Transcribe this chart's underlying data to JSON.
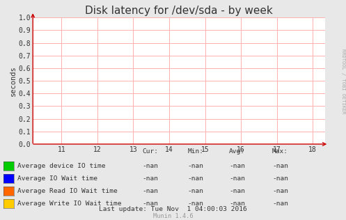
{
  "title": "Disk latency for /dev/sda - by week",
  "ylabel": "seconds",
  "xlim": [
    10.2,
    18.35
  ],
  "ylim": [
    0.0,
    1.0
  ],
  "xticks": [
    11,
    12,
    13,
    14,
    15,
    16,
    17,
    18
  ],
  "yticks": [
    0.0,
    0.1,
    0.2,
    0.3,
    0.4,
    0.5,
    0.6,
    0.7,
    0.8,
    0.9,
    1.0
  ],
  "grid_color": "#ffb0b0",
  "bg_color": "#e8e8e8",
  "plot_bg_color": "#ffffff",
  "axis_color": "#cc0000",
  "tick_color": "#333333",
  "title_color": "#333333",
  "title_fontsize": 11,
  "watermark": "RRDTOOL / TOBI OETIKER",
  "legend_items": [
    {
      "label": "Average device IO time",
      "color": "#00cc00"
    },
    {
      "label": "Average IO Wait time",
      "color": "#0000ff"
    },
    {
      "label": "Average Read IO Wait time",
      "color": "#ff6600"
    },
    {
      "label": "Average Write IO Wait time",
      "color": "#ffcc00"
    }
  ],
  "stats_headers": [
    "Cur:",
    "Min:",
    "Avg:",
    "Max:"
  ],
  "stats_values": [
    [
      "-nan",
      "-nan",
      "-nan",
      "-nan"
    ],
    [
      "-nan",
      "-nan",
      "-nan",
      "-nan"
    ],
    [
      "-nan",
      "-nan",
      "-nan",
      "-nan"
    ],
    [
      "-nan",
      "-nan",
      "-nan",
      "-nan"
    ]
  ],
  "footer": "Last update: Tue Nov  1 04:00:03 2016",
  "munin_version": "Munin 1.4.6"
}
